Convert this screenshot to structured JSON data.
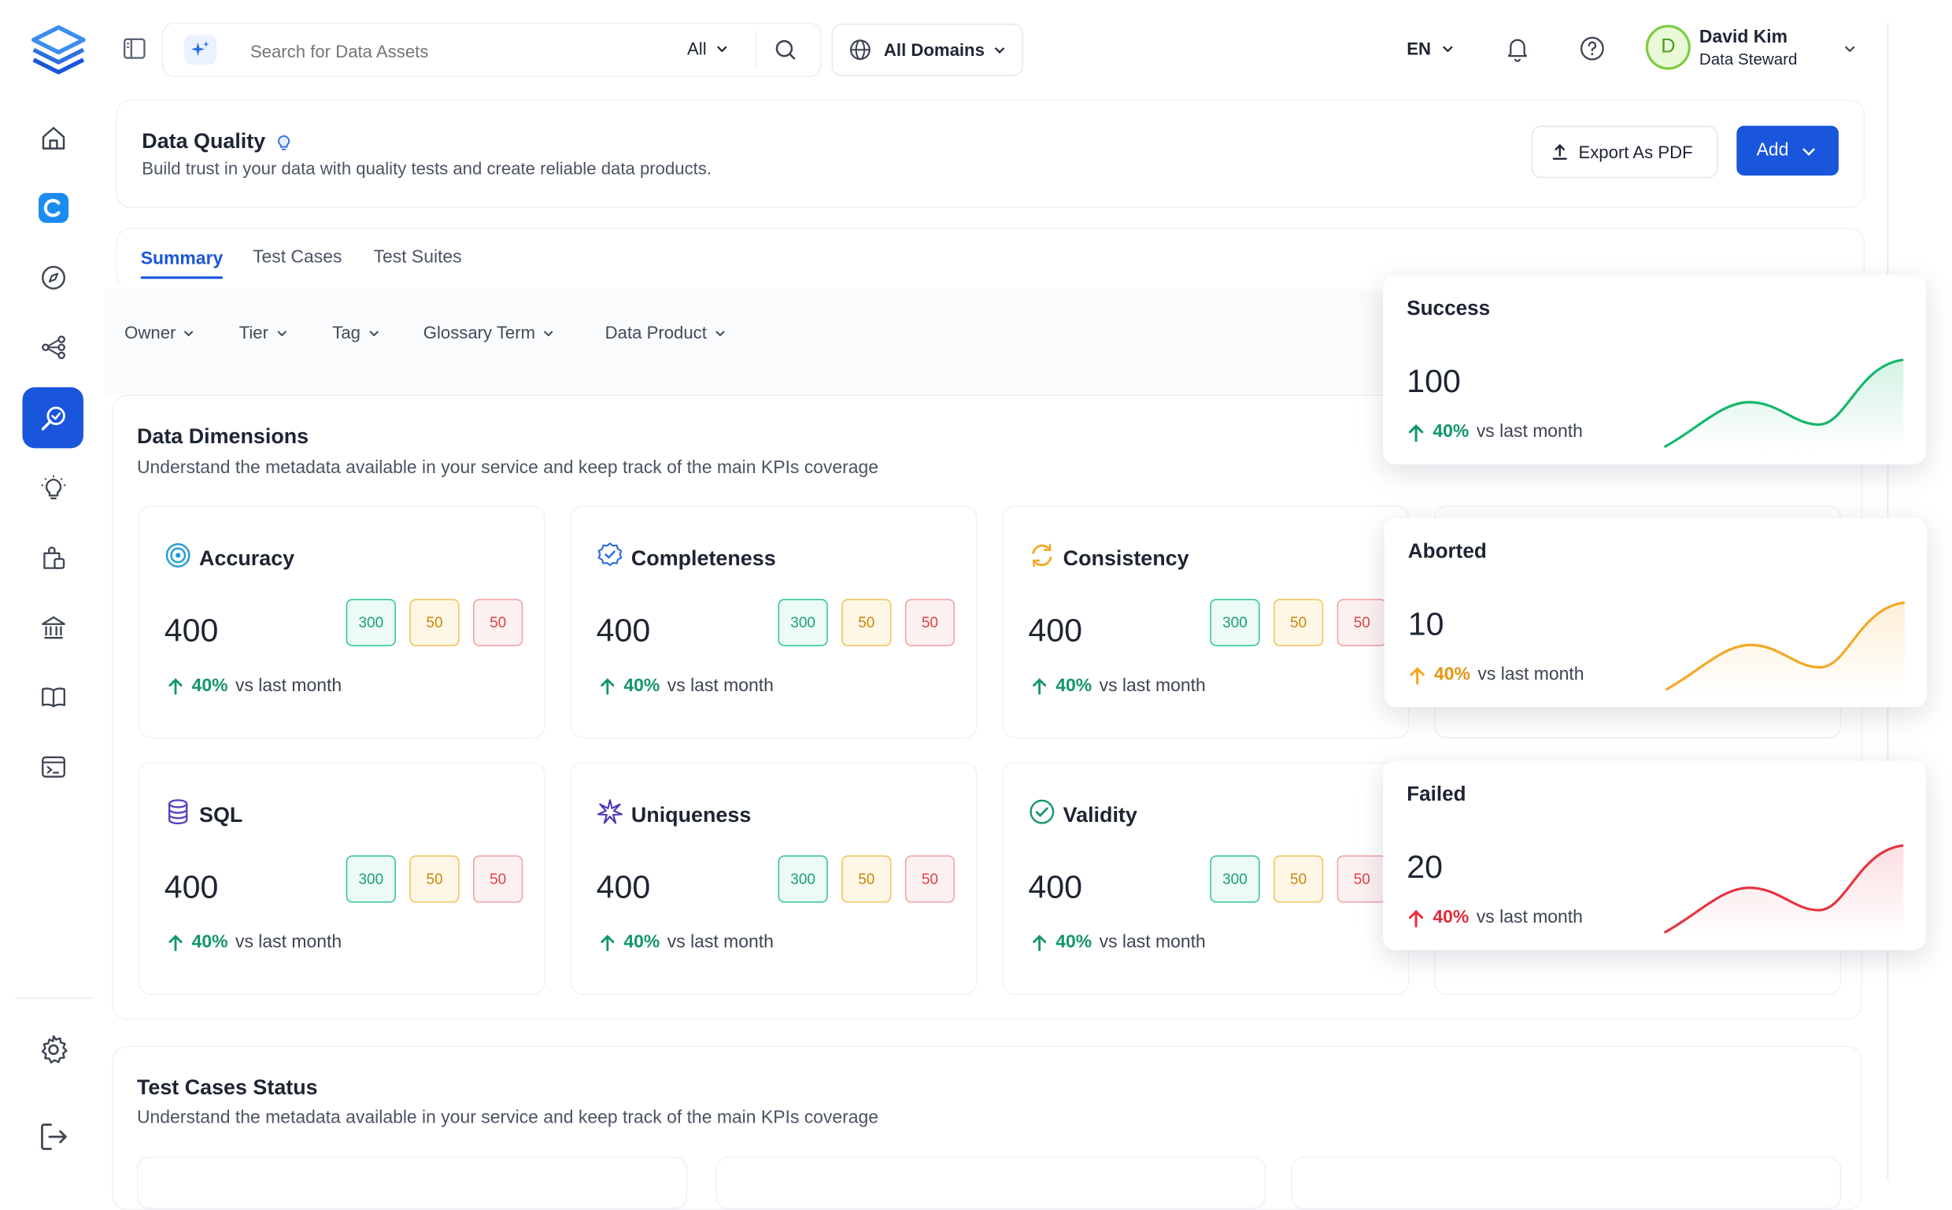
{
  "search": {
    "placeholder": "Search for Data Assets",
    "scope": "All"
  },
  "domain_selector": "All Domains",
  "language": "EN",
  "user": {
    "initial": "D",
    "name": "David Kim",
    "role": "Data Steward"
  },
  "header": {
    "title": "Data Quality",
    "subtitle": "Build trust in your data with quality tests and create reliable data products.",
    "export_label": "Export As PDF",
    "add_label": "Add"
  },
  "tabs": [
    {
      "label": "Summary",
      "active": true
    },
    {
      "label": "Test Cases",
      "active": false
    },
    {
      "label": "Test Suites",
      "active": false
    }
  ],
  "filters": [
    "Owner",
    "Tier",
    "Tag",
    "Glossary Term",
    "Data Product"
  ],
  "dimensions": {
    "title": "Data Dimensions",
    "subtitle": "Understand the metadata available in your service and keep track of the main KPIs coverage",
    "cards": [
      {
        "name": "Accuracy",
        "icon": "target-icon",
        "total": "400",
        "success": "300",
        "aborted": "50",
        "failed": "50",
        "change": "40%",
        "compare": "vs last month"
      },
      {
        "name": "Completeness",
        "icon": "badge-check-icon",
        "total": "400",
        "success": "300",
        "aborted": "50",
        "failed": "50",
        "change": "40%",
        "compare": "vs last month"
      },
      {
        "name": "Consistency",
        "icon": "refresh-icon",
        "total": "400",
        "success": "300",
        "aborted": "50",
        "failed": "50",
        "change": "40%",
        "compare": "vs last month"
      },
      {
        "name": "SQL",
        "icon": "database-icon",
        "total": "400",
        "success": "300",
        "aborted": "50",
        "failed": "50",
        "change": "40%",
        "compare": "vs last month"
      },
      {
        "name": "Uniqueness",
        "icon": "sparkle-icon",
        "total": "400",
        "success": "300",
        "aborted": "50",
        "failed": "50",
        "change": "40%",
        "compare": "vs last month"
      },
      {
        "name": "Validity",
        "icon": "check-circle-icon",
        "total": "400",
        "success": "300",
        "aborted": "50",
        "failed": "50",
        "change": "40%",
        "compare": "vs last month"
      }
    ]
  },
  "status_cards": [
    {
      "label": "Success",
      "value": "100",
      "change": "40%",
      "compare": "vs last month",
      "color": "#12b76a"
    },
    {
      "label": "Aborted",
      "value": "10",
      "change": "40%",
      "compare": "vs last month",
      "color": "#f5a623"
    },
    {
      "label": "Failed",
      "value": "20",
      "change": "40%",
      "compare": "vs last month",
      "color": "#e5333f"
    }
  ],
  "test_cases_status": {
    "title": "Test Cases Status",
    "subtitle": "Understand the metadata available in your service and keep track of the main KPIs coverage"
  },
  "colors": {
    "accent": "#1a56db",
    "success": "#12956d",
    "warning": "#f5a623",
    "danger": "#e5333f"
  }
}
